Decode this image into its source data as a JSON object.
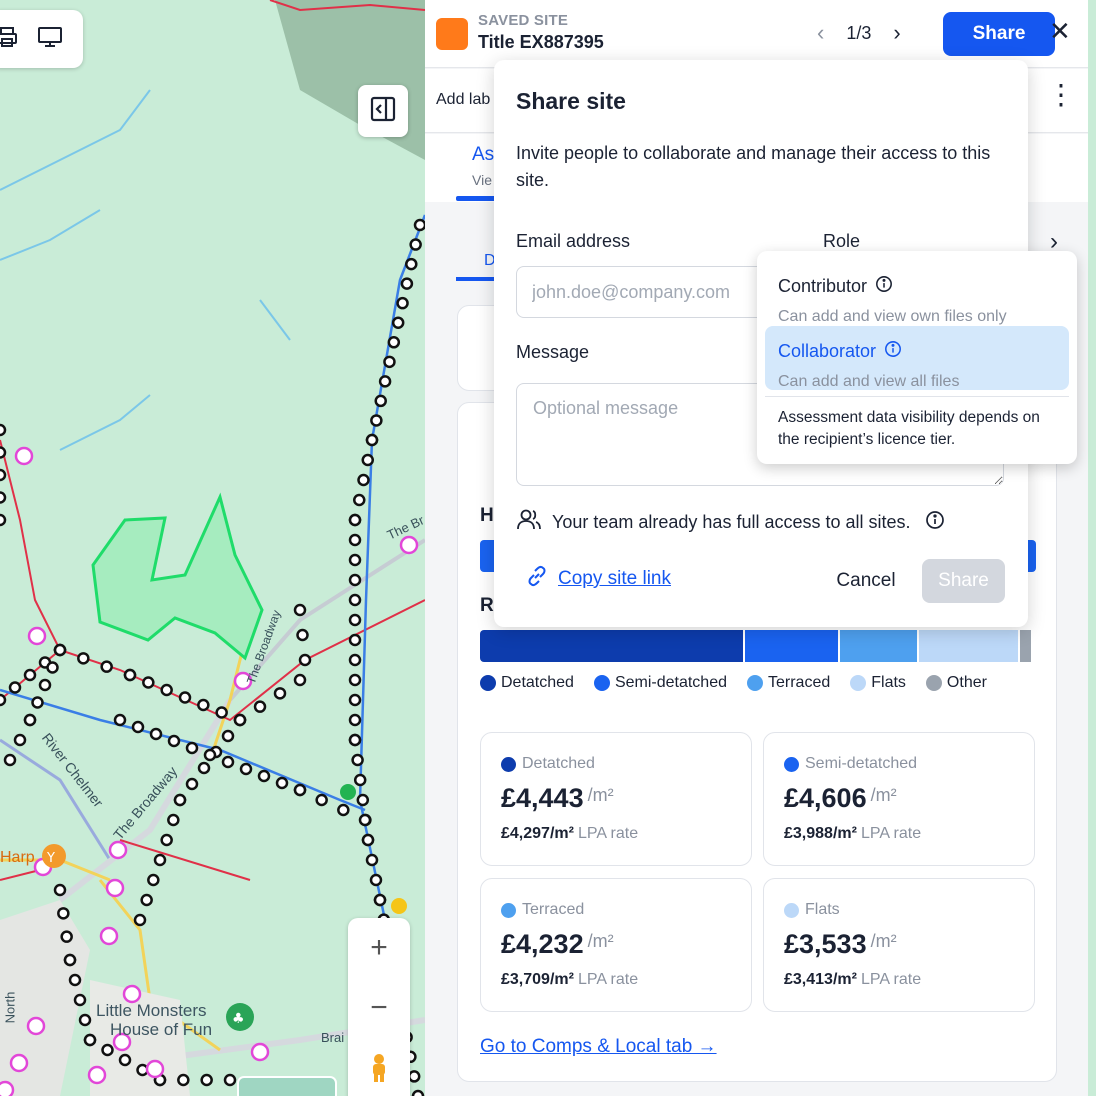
{
  "map": {
    "labels": {
      "river": "River Chelmer",
      "road1": "The Broadway",
      "road2": "The Broadway",
      "road3": "The Br",
      "harp": "Harp",
      "poi1": "Little Monsters",
      "poi2": "House of Fun",
      "north": "North",
      "brai": "Brai"
    },
    "zoom_in": "+",
    "zoom_out": "−"
  },
  "header": {
    "saved_label": "SAVED SITE",
    "title": "Title EX887395",
    "pager": "1/3",
    "share_label": "Share",
    "close_label": "✕"
  },
  "row2": {
    "add_label": "Add lab"
  },
  "tabs": {
    "as": "As",
    "view": "Vie",
    "d": "D"
  },
  "section": {
    "h_label": "H",
    "r_label": "R"
  },
  "legend": [
    {
      "label": "Detatched",
      "color": "#0d3cad"
    },
    {
      "label": "Semi-detatched",
      "color": "#1a63f0"
    },
    {
      "label": "Terraced",
      "color": "#4ea0ef"
    },
    {
      "label": "Flats",
      "color": "#bcd8f8"
    },
    {
      "label": "Other",
      "color": "#9aa3ae"
    }
  ],
  "bar_shares": [
    0.48,
    0.17,
    0.14,
    0.18,
    0.02
  ],
  "prices": [
    {
      "label": "Detatched",
      "value": "£4,443",
      "unit": "/m²",
      "lpa": "£4,297/m²",
      "lpa_suffix": "LPA rate",
      "color": "#0d3cad"
    },
    {
      "label": "Semi-detatched",
      "value": "£4,606",
      "unit": "/m²",
      "lpa": "£3,988/m²",
      "lpa_suffix": "LPA rate",
      "color": "#1a63f0"
    },
    {
      "label": "Terraced",
      "value": "£4,232",
      "unit": "/m²",
      "lpa": "£3,709/m²",
      "lpa_suffix": "LPA rate",
      "color": "#4ea0ef"
    },
    {
      "label": "Flats",
      "value": "£3,533",
      "unit": "/m²",
      "lpa": "£3,413/m²",
      "lpa_suffix": "LPA rate",
      "color": "#bcd8f8"
    }
  ],
  "comps_link": "Go to Comps & Local tab →",
  "modal": {
    "title": "Share site",
    "description": "Invite people to collaborate and manage their access to this site.",
    "email_label": "Email address",
    "email_placeholder": "john.doe@company.com",
    "role_label": "Role",
    "message_label": "Message",
    "message_placeholder": "Optional message",
    "team_note": "Your team already has full access to all sites.",
    "copy_link": "Copy site link",
    "cancel": "Cancel",
    "share": "Share"
  },
  "role_dropdown": {
    "options": [
      {
        "title": "Contributor",
        "subtitle": "Can add and view own files only",
        "selected": false
      },
      {
        "title": "Collaborator",
        "subtitle": "Can add and view all files",
        "selected": true
      }
    ],
    "note": "Assessment data visibility depends on the recipient’s licence tier."
  },
  "icons": {
    "printer": "printer-icon",
    "monitor": "monitor-icon",
    "sidebar": "sidebar-toggle-icon",
    "person": "pegman-icon",
    "team": "team-icon",
    "info": "info-icon",
    "link": "link-icon"
  }
}
